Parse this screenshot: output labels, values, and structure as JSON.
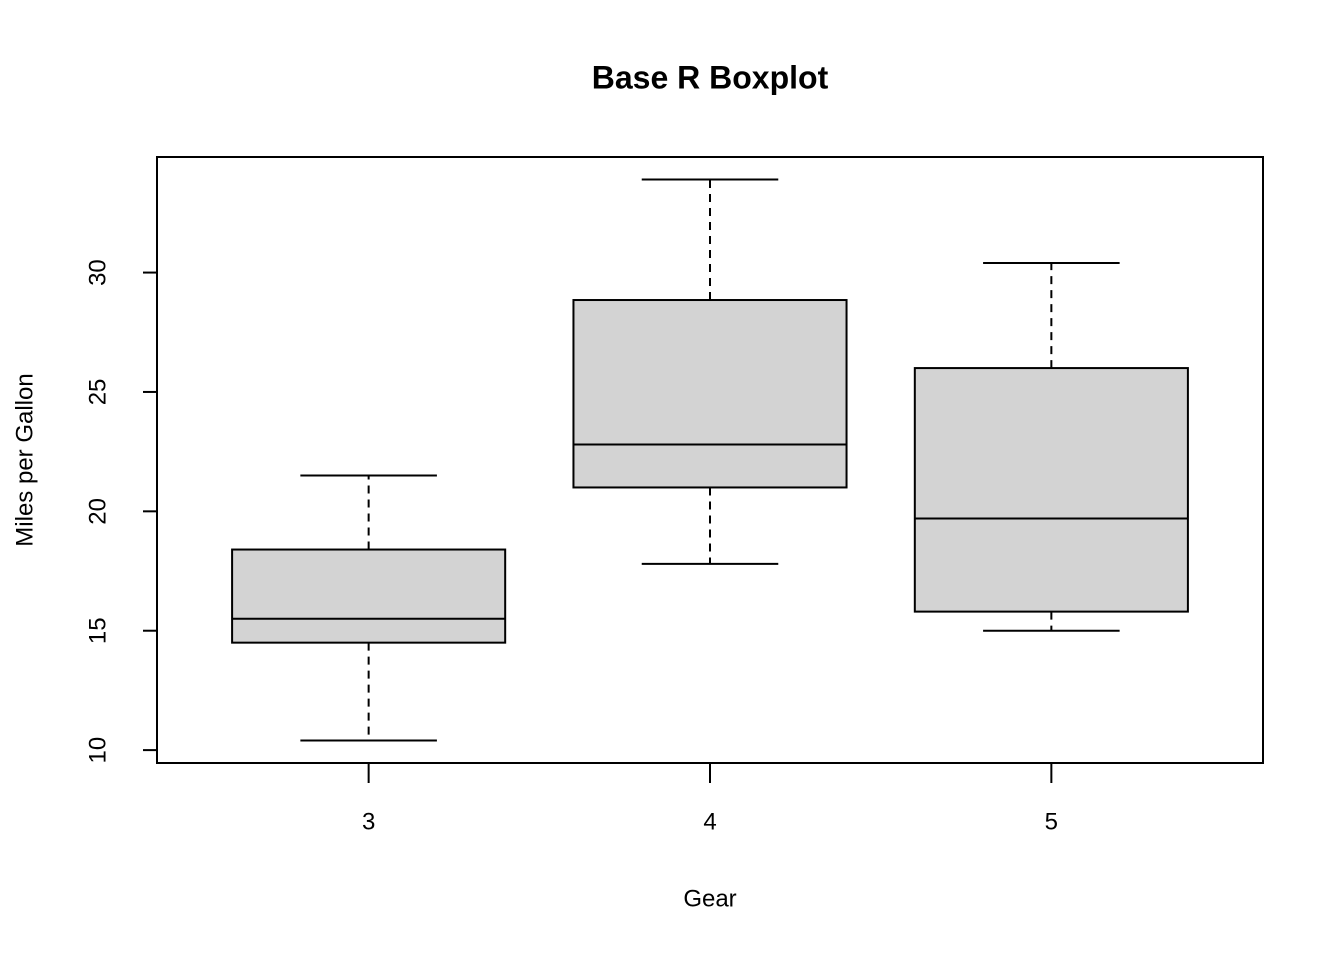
{
  "chart_data": {
    "type": "boxplot",
    "title": "Base R Boxplot",
    "xlabel": "Gear",
    "ylabel": "Miles per Gallon",
    "categories": [
      "3",
      "4",
      "5"
    ],
    "boxes": [
      {
        "min": 10.4,
        "q1": 14.5,
        "median": 15.5,
        "q3": 18.4,
        "max": 21.5
      },
      {
        "min": 17.8,
        "q1": 21.0,
        "median": 22.8,
        "q3": 28.85,
        "max": 33.9
      },
      {
        "min": 15.0,
        "q1": 15.8,
        "median": 19.7,
        "q3": 26.0,
        "max": 30.4
      }
    ],
    "color": "#d3d3d3",
    "ylim": [
      9.46,
      34.84
    ],
    "yticks": [
      10,
      15,
      20,
      25,
      30
    ]
  }
}
